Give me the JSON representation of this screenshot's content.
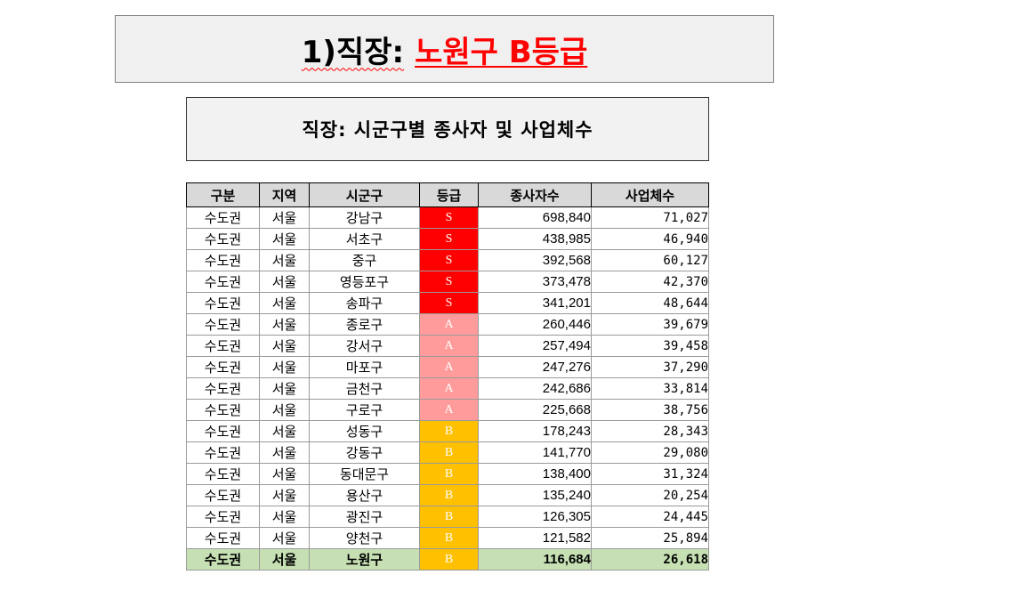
{
  "header": {
    "title_prefix": "1)직장:",
    "title_highlight": "노원구 B등급"
  },
  "subtitle": "직장: 시군구별 종사자 및 사업체수",
  "colors": {
    "grade_S": "#ff0000",
    "grade_A": "#ff9b9b",
    "grade_B": "#ffc000",
    "highlight_row": "#c6e0b4",
    "header_bg": "#d9d9d9"
  },
  "table": {
    "columns": [
      "구분",
      "지역",
      "시군구",
      "등급",
      "종사자수",
      "사업체수"
    ],
    "rows": [
      [
        "수도권",
        "서울",
        "강남구",
        "S",
        "698,840",
        "71,027"
      ],
      [
        "수도권",
        "서울",
        "서초구",
        "S",
        "438,985",
        "46,940"
      ],
      [
        "수도권",
        "서울",
        "중구",
        "S",
        "392,568",
        "60,127"
      ],
      [
        "수도권",
        "서울",
        "영등포구",
        "S",
        "373,478",
        "42,370"
      ],
      [
        "수도권",
        "서울",
        "송파구",
        "S",
        "341,201",
        "48,644"
      ],
      [
        "수도권",
        "서울",
        "종로구",
        "A",
        "260,446",
        "39,679"
      ],
      [
        "수도권",
        "서울",
        "강서구",
        "A",
        "257,494",
        "39,458"
      ],
      [
        "수도권",
        "서울",
        "마포구",
        "A",
        "247,276",
        "37,290"
      ],
      [
        "수도권",
        "서울",
        "금천구",
        "A",
        "242,686",
        "33,814"
      ],
      [
        "수도권",
        "서울",
        "구로구",
        "A",
        "225,668",
        "38,756"
      ],
      [
        "수도권",
        "서울",
        "성동구",
        "B",
        "178,243",
        "28,343"
      ],
      [
        "수도권",
        "서울",
        "강동구",
        "B",
        "141,770",
        "29,080"
      ],
      [
        "수도권",
        "서울",
        "동대문구",
        "B",
        "138,400",
        "31,324"
      ],
      [
        "수도권",
        "서울",
        "용산구",
        "B",
        "135,240",
        "20,254"
      ],
      [
        "수도권",
        "서울",
        "광진구",
        "B",
        "126,305",
        "24,445"
      ],
      [
        "수도권",
        "서울",
        "양천구",
        "B",
        "121,582",
        "25,894"
      ],
      [
        "수도권",
        "서울",
        "노원구",
        "B",
        "116,684",
        "26,618"
      ]
    ],
    "highlight_row_index": 16
  }
}
